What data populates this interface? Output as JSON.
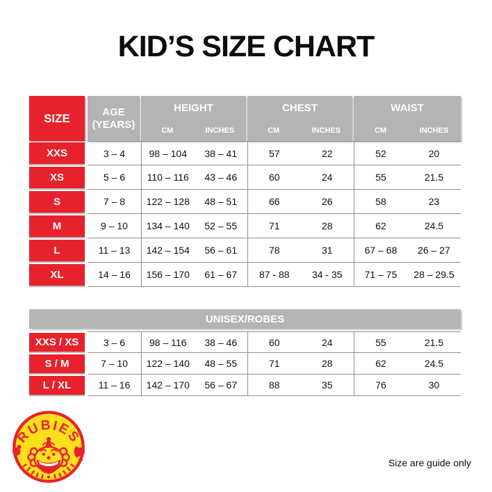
{
  "title": "KID’S SIZE CHART",
  "footnote": "Size are guide only",
  "colors": {
    "red": "#e7222c",
    "header_gray": "#b4b4b4",
    "border_gray": "#8f8f8f",
    "logo_yellow": "#ffdf1c",
    "background": "#ffffff"
  },
  "logo": {
    "brand": "RUBIES",
    "trademark": "™"
  },
  "main_table": {
    "header": {
      "size": "SIZE",
      "age_line1": "AGE",
      "age_line2": "(YEARS)",
      "groups": [
        {
          "label": "HEIGHT",
          "sub": [
            "CM",
            "INCHES"
          ]
        },
        {
          "label": "CHEST",
          "sub": [
            "CM",
            "INCHES"
          ]
        },
        {
          "label": "WAIST",
          "sub": [
            "CM",
            "INCHES"
          ]
        }
      ]
    },
    "rows": [
      {
        "size": "XXS",
        "age": "3 – 4",
        "height_cm": "98 – 104",
        "height_in": "38 – 41",
        "chest_cm": "57",
        "chest_in": "22",
        "waist_cm": "52",
        "waist_in": "20"
      },
      {
        "size": "XS",
        "age": "5 – 6",
        "height_cm": "110 – 116",
        "height_in": "43 – 46",
        "chest_cm": "60",
        "chest_in": "24",
        "waist_cm": "55",
        "waist_in": "21.5"
      },
      {
        "size": "S",
        "age": "7 – 8",
        "height_cm": "122 – 128",
        "height_in": "48 – 51",
        "chest_cm": "66",
        "chest_in": "26",
        "waist_cm": "58",
        "waist_in": "23"
      },
      {
        "size": "M",
        "age": "9 – 10",
        "height_cm": "134 – 140",
        "height_in": "52 – 55",
        "chest_cm": "71",
        "chest_in": "28",
        "waist_cm": "62",
        "waist_in": "24.5"
      },
      {
        "size": "L",
        "age": "11 – 13",
        "height_cm": "142 – 154",
        "height_in": "56 – 61",
        "chest_cm": "78",
        "chest_in": "31",
        "waist_cm": "67 – 68",
        "waist_in": "26 – 27"
      },
      {
        "size": "XL",
        "age": "14 – 16",
        "height_cm": "156 – 170",
        "height_in": "61 – 67",
        "chest_cm": "87 - 88",
        "chest_in": "34 - 35",
        "waist_cm": "71 – 75",
        "waist_in": "28 – 29.5"
      }
    ]
  },
  "unisex_table": {
    "header": "UNISEX/ROBES",
    "rows": [
      {
        "size": "XXS / XS",
        "age": "3 – 6",
        "height_cm": "98 – 116",
        "height_in": "38 – 46",
        "chest_cm": "60",
        "chest_in": "24",
        "waist_cm": "55",
        "waist_in": "21.5"
      },
      {
        "size": "S / M",
        "age": "7 – 10",
        "height_cm": "122 – 140",
        "height_in": "48 – 55",
        "chest_cm": "71",
        "chest_in": "28",
        "waist_cm": "62",
        "waist_in": "24.5"
      },
      {
        "size": "L / XL",
        "age": "11 – 16",
        "height_cm": "142 – 170",
        "height_in": "56 – 67",
        "chest_cm": "88",
        "chest_in": "35",
        "waist_cm": "76",
        "waist_in": "30"
      }
    ]
  }
}
